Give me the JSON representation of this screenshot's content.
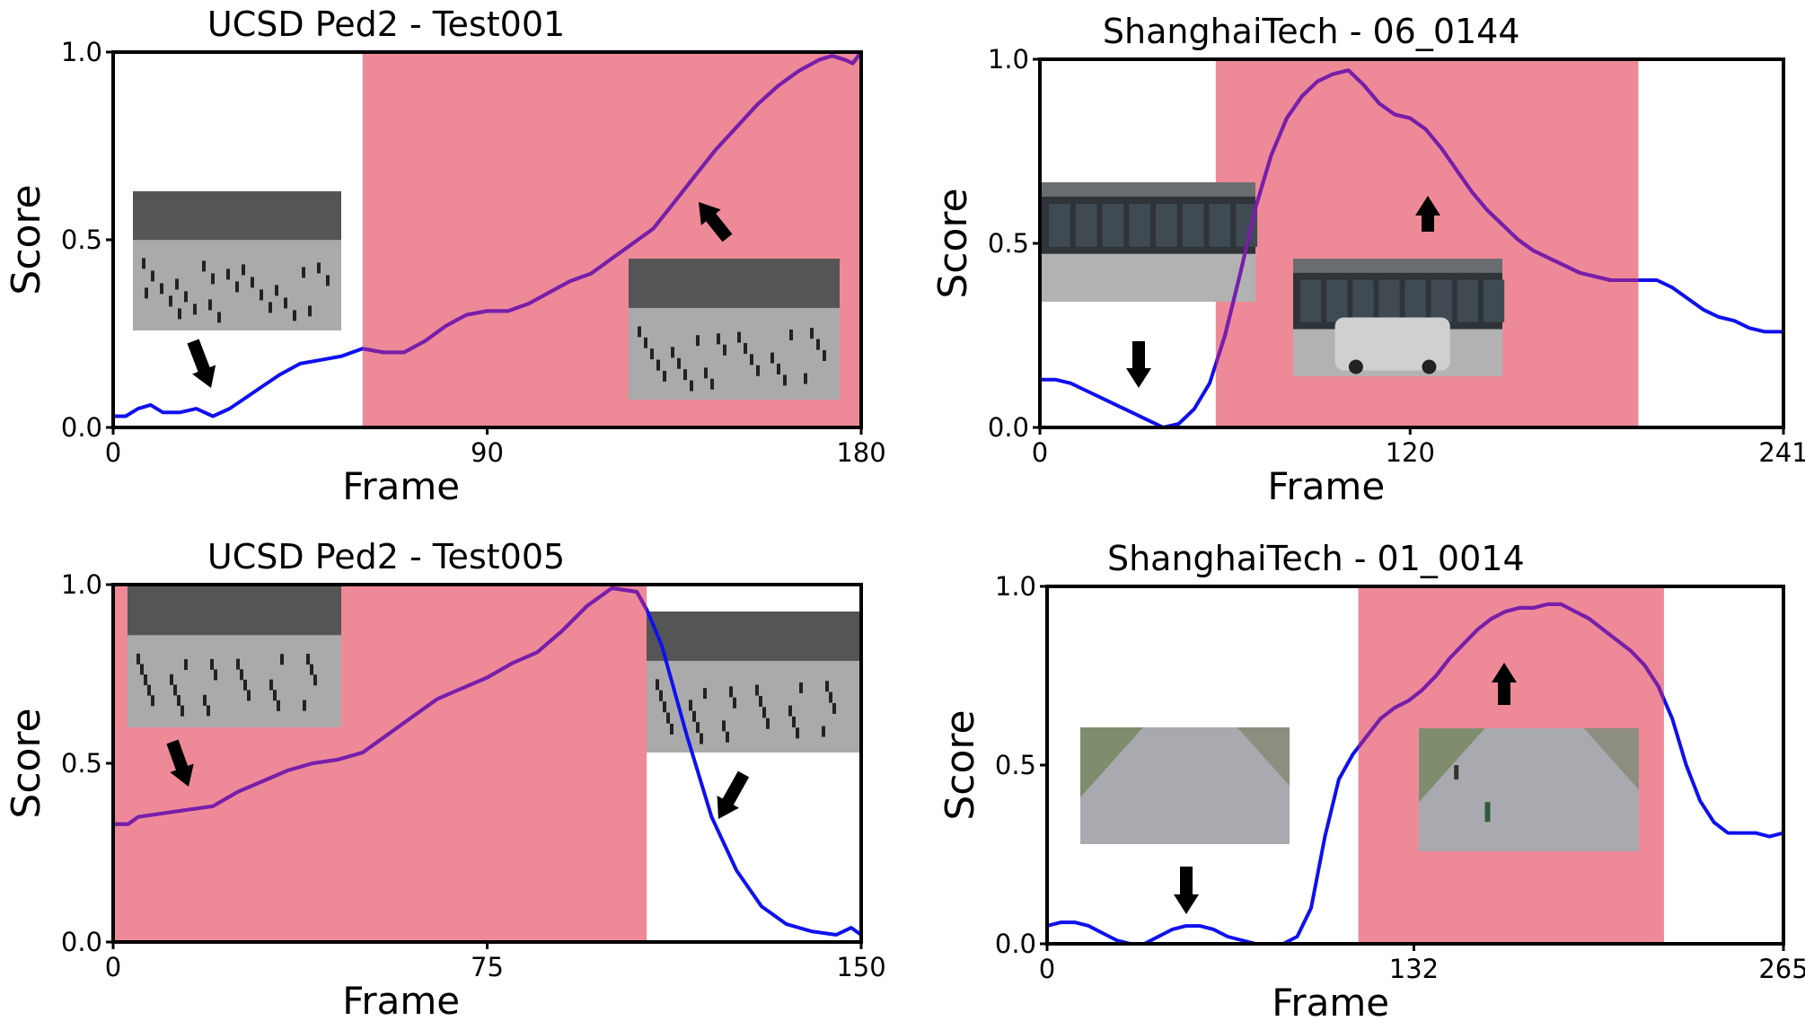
{
  "chart_data": [
    {
      "type": "line",
      "title": "UCSD Ped2 - Test001",
      "xlabel": "Frame",
      "ylabel": "Score",
      "xlim": [
        0,
        180
      ],
      "ylim": [
        0,
        1
      ],
      "xticks": [
        "0",
        "90",
        "180"
      ],
      "yticks": [
        "0.0",
        "0.5",
        "1.0"
      ],
      "grid": false,
      "anomaly_span": [
        60,
        180
      ],
      "series": [
        {
          "line_color": "#1010ee",
          "x": [
            0,
            3,
            6,
            9,
            12,
            16,
            20,
            24,
            28,
            32,
            36,
            40,
            45,
            50,
            55,
            60,
            65,
            70,
            75,
            80,
            85,
            90,
            95,
            100,
            105,
            110,
            115,
            120,
            125,
            130,
            135,
            140,
            145,
            150,
            155,
            160,
            165,
            170,
            173,
            176,
            178,
            180
          ],
          "y": [
            0.03,
            0.03,
            0.05,
            0.06,
            0.04,
            0.04,
            0.05,
            0.03,
            0.05,
            0.08,
            0.11,
            0.14,
            0.17,
            0.18,
            0.19,
            0.21,
            0.2,
            0.2,
            0.23,
            0.27,
            0.3,
            0.31,
            0.31,
            0.33,
            0.36,
            0.39,
            0.41,
            0.45,
            0.49,
            0.53,
            0.6,
            0.67,
            0.74,
            0.8,
            0.86,
            0.91,
            0.95,
            0.98,
            0.99,
            0.98,
            0.97,
            1.0
          ]
        }
      ]
    },
    {
      "type": "line",
      "title": "ShanghaiTech - 06_0144",
      "xlabel": "Frame",
      "ylabel": "Score",
      "xlim": [
        0,
        241
      ],
      "ylim": [
        0,
        1
      ],
      "xticks": [
        "0",
        "120",
        "241"
      ],
      "yticks": [
        "0.0",
        "0.5",
        "1.0"
      ],
      "grid": false,
      "anomaly_span": [
        57,
        194
      ],
      "series": [
        {
          "line_color": "#1010ee",
          "x": [
            0,
            5,
            10,
            15,
            20,
            25,
            30,
            35,
            40,
            45,
            50,
            55,
            60,
            65,
            70,
            75,
            80,
            85,
            90,
            95,
            100,
            105,
            110,
            115,
            120,
            125,
            130,
            135,
            140,
            145,
            150,
            155,
            160,
            165,
            170,
            175,
            180,
            185,
            190,
            195,
            200,
            205,
            210,
            215,
            220,
            225,
            230,
            235,
            241
          ],
          "y": [
            0.13,
            0.13,
            0.12,
            0.1,
            0.08,
            0.06,
            0.04,
            0.02,
            0.0,
            0.01,
            0.05,
            0.12,
            0.25,
            0.42,
            0.6,
            0.74,
            0.84,
            0.9,
            0.94,
            0.96,
            0.97,
            0.93,
            0.88,
            0.85,
            0.84,
            0.81,
            0.76,
            0.7,
            0.64,
            0.59,
            0.55,
            0.51,
            0.48,
            0.46,
            0.44,
            0.42,
            0.41,
            0.4,
            0.4,
            0.4,
            0.4,
            0.38,
            0.35,
            0.32,
            0.3,
            0.29,
            0.27,
            0.26,
            0.26
          ]
        }
      ]
    },
    {
      "type": "line",
      "title": "UCSD Ped2 - Test005",
      "xlabel": "Frame",
      "ylabel": "Score",
      "xlim": [
        0,
        150
      ],
      "ylim": [
        0,
        1
      ],
      "xticks": [
        "0",
        "75",
        "150"
      ],
      "yticks": [
        "0.0",
        "0.5",
        "1.0"
      ],
      "grid": false,
      "anomaly_span": [
        0,
        107
      ],
      "series": [
        {
          "line_color": "#1010ee",
          "x": [
            0,
            3,
            5,
            10,
            15,
            20,
            25,
            30,
            35,
            40,
            45,
            50,
            55,
            60,
            65,
            70,
            75,
            80,
            85,
            90,
            95,
            100,
            105,
            107,
            110,
            115,
            120,
            125,
            130,
            135,
            140,
            145,
            148,
            150
          ],
          "y": [
            0.33,
            0.33,
            0.35,
            0.36,
            0.37,
            0.38,
            0.42,
            0.45,
            0.48,
            0.5,
            0.51,
            0.53,
            0.58,
            0.63,
            0.68,
            0.71,
            0.74,
            0.78,
            0.81,
            0.87,
            0.94,
            0.99,
            0.98,
            0.93,
            0.83,
            0.58,
            0.35,
            0.2,
            0.1,
            0.05,
            0.03,
            0.02,
            0.04,
            0.02
          ]
        }
      ]
    },
    {
      "type": "line",
      "title": "ShanghaiTech - 01_0014",
      "xlabel": "Frame",
      "ylabel": "Score",
      "xlim": [
        0,
        265
      ],
      "ylim": [
        0,
        1
      ],
      "xticks": [
        "0",
        "132",
        "265"
      ],
      "yticks": [
        "0.0",
        "0.5",
        "1.0"
      ],
      "grid": false,
      "anomaly_span": [
        112,
        222
      ],
      "series": [
        {
          "line_color": "#1010ee",
          "x": [
            0,
            5,
            10,
            15,
            20,
            25,
            30,
            35,
            40,
            45,
            50,
            55,
            60,
            65,
            70,
            75,
            80,
            85,
            90,
            95,
            100,
            105,
            110,
            115,
            120,
            125,
            130,
            135,
            140,
            145,
            150,
            155,
            160,
            165,
            170,
            175,
            180,
            185,
            190,
            195,
            200,
            205,
            210,
            215,
            220,
            225,
            230,
            235,
            240,
            245,
            250,
            255,
            260,
            265
          ],
          "y": [
            0.05,
            0.06,
            0.06,
            0.05,
            0.03,
            0.01,
            0.0,
            0.0,
            0.02,
            0.04,
            0.05,
            0.05,
            0.04,
            0.02,
            0.01,
            0.0,
            0.0,
            0.0,
            0.02,
            0.1,
            0.3,
            0.46,
            0.53,
            0.58,
            0.63,
            0.66,
            0.68,
            0.71,
            0.75,
            0.8,
            0.84,
            0.88,
            0.91,
            0.93,
            0.94,
            0.94,
            0.95,
            0.95,
            0.93,
            0.91,
            0.88,
            0.85,
            0.82,
            0.78,
            0.72,
            0.63,
            0.5,
            0.4,
            0.34,
            0.31,
            0.31,
            0.31,
            0.3,
            0.31
          ]
        }
      ]
    }
  ]
}
